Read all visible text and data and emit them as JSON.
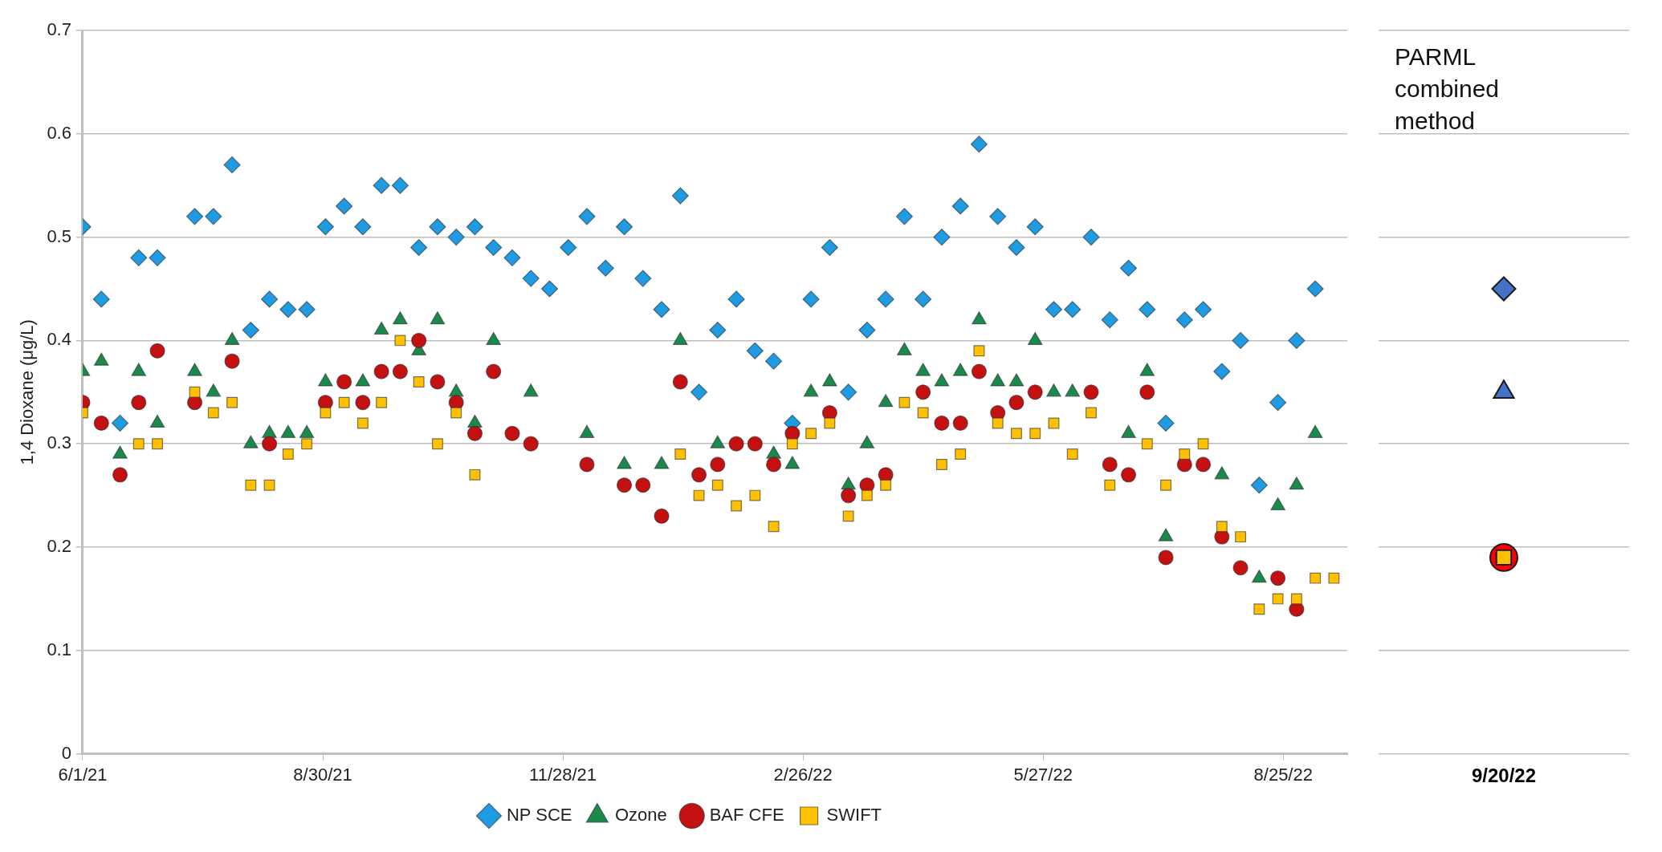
{
  "chart_data": [
    {
      "type": "scatter",
      "ylabel": "1,4 Dioxane (μg/L)",
      "x": [
        "2021-06-01",
        "2021-06-08",
        "2021-06-15",
        "2021-06-22",
        "2021-06-29",
        "2021-07-06",
        "2021-07-13",
        "2021-07-20",
        "2021-07-27",
        "2021-08-03",
        "2021-08-10",
        "2021-08-17",
        "2021-08-24",
        "2021-08-31",
        "2021-09-07",
        "2021-09-14",
        "2021-09-21",
        "2021-09-28",
        "2021-10-05",
        "2021-10-12",
        "2021-10-19",
        "2021-10-26",
        "2021-11-02",
        "2021-11-09",
        "2021-11-16",
        "2021-11-23",
        "2021-11-30",
        "2021-12-07",
        "2021-12-14",
        "2021-12-21",
        "2021-12-28",
        "2022-01-04",
        "2022-01-11",
        "2022-01-18",
        "2022-01-25",
        "2022-02-01",
        "2022-02-08",
        "2022-02-15",
        "2022-02-22",
        "2022-03-01",
        "2022-03-08",
        "2022-03-15",
        "2022-03-22",
        "2022-03-29",
        "2022-04-05",
        "2022-04-12",
        "2022-04-19",
        "2022-04-26",
        "2022-05-03",
        "2022-05-10",
        "2022-05-17",
        "2022-05-24",
        "2022-05-31",
        "2022-06-07",
        "2022-06-14",
        "2022-06-21",
        "2022-06-28",
        "2022-07-05",
        "2022-07-12",
        "2022-07-19",
        "2022-07-26",
        "2022-08-02",
        "2022-08-09",
        "2022-08-16",
        "2022-08-23",
        "2022-08-30",
        "2022-09-06",
        "2022-09-13"
      ],
      "series": [
        {
          "name": "NP SCE",
          "color": "#1f9be3",
          "marker": "diamond",
          "values": [
            0.51,
            0.44,
            0.32,
            0.48,
            0.48,
            null,
            0.52,
            0.52,
            0.57,
            0.41,
            0.44,
            0.43,
            0.43,
            0.51,
            0.53,
            0.51,
            0.55,
            0.55,
            0.49,
            0.51,
            0.5,
            0.51,
            0.49,
            0.48,
            0.46,
            0.45,
            0.49,
            0.52,
            0.47,
            0.51,
            0.46,
            0.43,
            0.54,
            0.35,
            0.41,
            0.44,
            0.39,
            0.38,
            0.32,
            0.44,
            0.49,
            0.35,
            0.41,
            0.44,
            0.52,
            0.44,
            0.5,
            0.53,
            0.59,
            0.52,
            0.49,
            0.51,
            0.43,
            0.43,
            0.5,
            0.42,
            0.47,
            0.43,
            0.32,
            0.42,
            0.43,
            0.37,
            0.4,
            0.26,
            0.34,
            0.4,
            0.45,
            null
          ]
        },
        {
          "name": "Ozone",
          "color": "#1a8a4c",
          "marker": "triangle",
          "values": [
            0.37,
            0.38,
            0.29,
            0.37,
            0.32,
            null,
            0.37,
            0.35,
            0.4,
            0.3,
            0.31,
            0.31,
            0.31,
            0.36,
            null,
            0.36,
            0.41,
            0.42,
            0.39,
            0.42,
            0.35,
            0.32,
            0.4,
            null,
            0.35,
            null,
            null,
            0.31,
            null,
            0.28,
            null,
            0.28,
            0.4,
            null,
            0.3,
            null,
            null,
            0.29,
            0.28,
            0.35,
            0.36,
            0.26,
            0.3,
            0.34,
            0.39,
            0.37,
            0.36,
            0.37,
            0.42,
            0.36,
            0.36,
            0.4,
            0.35,
            0.35,
            null,
            null,
            0.31,
            0.37,
            0.21,
            null,
            null,
            0.27,
            null,
            0.17,
            0.24,
            0.26,
            0.31,
            null
          ]
        },
        {
          "name": "BAF CFE",
          "color": "#c41010",
          "marker": "circle",
          "values": [
            0.34,
            0.32,
            0.27,
            0.34,
            0.39,
            null,
            0.34,
            null,
            0.38,
            null,
            0.3,
            null,
            null,
            0.34,
            0.36,
            0.34,
            0.37,
            0.37,
            0.4,
            0.36,
            0.34,
            0.31,
            0.37,
            0.31,
            0.3,
            null,
            null,
            0.28,
            null,
            0.26,
            0.26,
            0.23,
            0.36,
            0.27,
            0.28,
            0.3,
            0.3,
            0.28,
            0.31,
            null,
            0.33,
            0.25,
            0.26,
            0.27,
            null,
            0.35,
            0.32,
            0.32,
            0.37,
            0.33,
            0.34,
            0.35,
            null,
            null,
            0.35,
            0.28,
            0.27,
            0.35,
            0.19,
            0.28,
            0.28,
            0.21,
            0.18,
            null,
            0.17,
            0.14,
            null,
            null
          ]
        },
        {
          "name": "SWIFT",
          "color": "#ffc000",
          "marker": "square",
          "values": [
            0.33,
            null,
            null,
            0.3,
            0.3,
            null,
            0.35,
            0.33,
            0.34,
            0.26,
            0.26,
            0.29,
            0.3,
            0.33,
            0.34,
            0.32,
            0.34,
            0.4,
            0.36,
            0.3,
            0.33,
            0.27,
            null,
            null,
            null,
            null,
            null,
            null,
            null,
            null,
            null,
            null,
            0.29,
            0.25,
            0.26,
            0.24,
            0.25,
            0.22,
            0.3,
            0.31,
            0.32,
            0.23,
            0.25,
            0.26,
            0.34,
            0.33,
            0.28,
            0.29,
            0.39,
            0.32,
            0.31,
            0.31,
            0.32,
            0.29,
            0.33,
            0.26,
            null,
            0.3,
            0.26,
            0.29,
            0.3,
            0.22,
            0.21,
            0.14,
            0.15,
            0.15,
            0.17,
            0.17
          ]
        }
      ],
      "xlim": [
        "2021-06-01",
        "2022-09-18"
      ],
      "xticks": [
        {
          "value": "2021-06-01",
          "label": "6/1/21"
        },
        {
          "value": "2021-08-30",
          "label": "8/30/21"
        },
        {
          "value": "2021-11-28",
          "label": "11/28/21"
        },
        {
          "value": "2022-02-26",
          "label": "2/26/22"
        },
        {
          "value": "2022-05-27",
          "label": "5/27/22"
        },
        {
          "value": "2022-08-25",
          "label": "8/25/22"
        }
      ],
      "ylim": [
        0,
        0.7
      ],
      "yticks": [
        0,
        0.1,
        0.2,
        0.3,
        0.4,
        0.5,
        0.6,
        0.7
      ],
      "grid": "y",
      "legend": "bottom"
    },
    {
      "type": "scatter",
      "title": "PARML combined method",
      "categories": [
        "9/20/22"
      ],
      "series": [
        {
          "color": "#4472c4",
          "marker": "diamond",
          "values": [
            0.45
          ]
        },
        {
          "color": "#4472c4",
          "marker": "triangle",
          "values": [
            0.35
          ]
        },
        {
          "color": "#ff0000",
          "marker": "circle",
          "values": [
            0.19
          ]
        },
        {
          "color": "#ffc000",
          "marker": "square",
          "values": [
            0.19
          ]
        }
      ],
      "ylim": [
        0,
        0.7
      ],
      "yticks": [
        0,
        0.1,
        0.2,
        0.3,
        0.4,
        0.5,
        0.6,
        0.7
      ],
      "grid": "y",
      "tick_labels": "x"
    }
  ]
}
